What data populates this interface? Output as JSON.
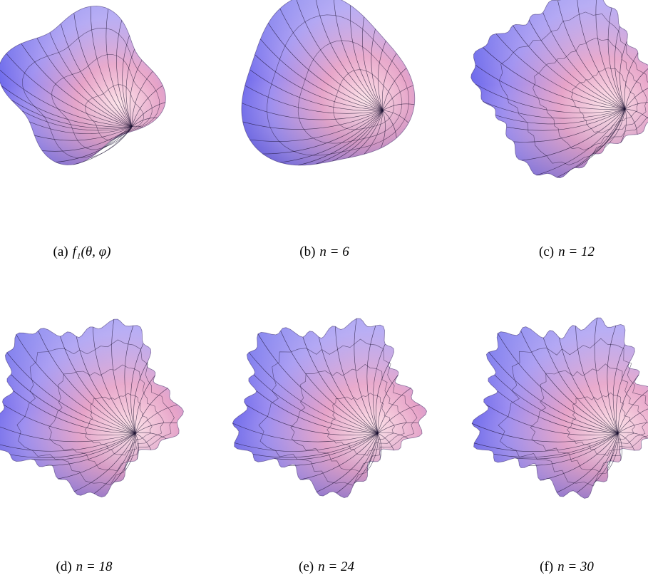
{
  "panels": [
    {
      "label": "(a)",
      "caption": "f₁(θ, φ)"
    },
    {
      "label": "(b)",
      "caption": "n = 6"
    },
    {
      "label": "(c)",
      "caption": "n = 12"
    },
    {
      "label": "(d)",
      "caption": "n = 18"
    },
    {
      "label": "(e)",
      "caption": "n = 24"
    },
    {
      "label": "(f)",
      "caption": "n = 30"
    }
  ]
}
